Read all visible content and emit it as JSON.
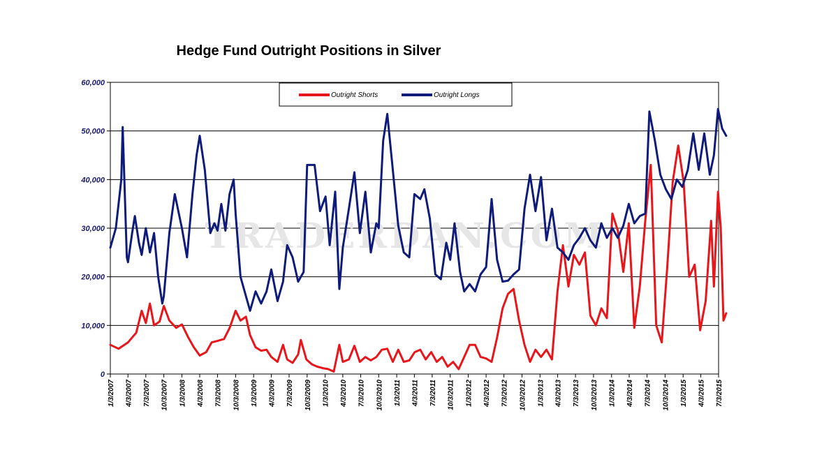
{
  "title": "Hedge Fund Outright Positions in Silver",
  "watermark": "TRADERDAN.COM",
  "chart_data": {
    "type": "line",
    "title": "Hedge Fund Outright Positions in Silver",
    "xlabel": "",
    "ylabel": "",
    "ylim": [
      0,
      60000
    ],
    "y_ticks": [
      "0",
      "10,000",
      "20,000",
      "30,000",
      "40,000",
      "50,000",
      "60,000"
    ],
    "x_ticks": [
      "1/3/2007",
      "4/3/2007",
      "7/3/2007",
      "10/3/2007",
      "1/3/2008",
      "4/3/2008",
      "7/3/2008",
      "10/3/2008",
      "1/3/2009",
      "4/3/2009",
      "7/3/2009",
      "10/3/2009",
      "1/3/2010",
      "4/3/2010",
      "7/3/2010",
      "10/3/2010",
      "1/3/2011",
      "4/3/2011",
      "7/3/2011",
      "10/3/2011",
      "1/3/2012",
      "4/3/2012",
      "7/3/2012",
      "10/3/2012",
      "1/3/2013",
      "4/3/2013",
      "7/3/2013",
      "10/3/2013",
      "1/3/2014",
      "4/3/2014",
      "7/3/2014",
      "10/3/2014",
      "1/3/2015",
      "4/3/2015",
      "7/3/2015"
    ],
    "x_domain": [
      "1/3/2007",
      "7/3/2015"
    ],
    "grid": "horizontal",
    "legend": "top-center",
    "series": [
      {
        "name": "Outright Shorts",
        "color": "#e8161b",
        "points": [
          [
            "1/3/2007",
            6000
          ],
          [
            "2/14/2007",
            5200
          ],
          [
            "4/3/2007",
            6500
          ],
          [
            "5/15/2007",
            8500
          ],
          [
            "6/12/2007",
            13000
          ],
          [
            "7/3/2007",
            10500
          ],
          [
            "7/24/2007",
            14500
          ],
          [
            "8/14/2007",
            10000
          ],
          [
            "9/11/2007",
            10800
          ],
          [
            "10/3/2007",
            14000
          ],
          [
            "10/31/2007",
            11000
          ],
          [
            "12/5/2007",
            9500
          ],
          [
            "1/3/2008",
            10200
          ],
          [
            "2/5/2008",
            7500
          ],
          [
            "3/4/2008",
            5500
          ],
          [
            "4/3/2008",
            3800
          ],
          [
            "5/6/2008",
            4500
          ],
          [
            "6/3/2008",
            6500
          ],
          [
            "7/3/2008",
            6800
          ],
          [
            "8/5/2008",
            7200
          ],
          [
            "9/3/2008",
            9500
          ],
          [
            "10/3/2008",
            13000
          ],
          [
            "10/28/2008",
            11000
          ],
          [
            "11/25/2008",
            11800
          ],
          [
            "12/16/2008",
            8000
          ],
          [
            "1/13/2009",
            5500
          ],
          [
            "2/10/2009",
            4800
          ],
          [
            "3/10/2009",
            5000
          ],
          [
            "4/3/2009",
            3500
          ],
          [
            "5/5/2009",
            2500
          ],
          [
            "6/2/2009",
            6000
          ],
          [
            "6/23/2009",
            3000
          ],
          [
            "7/21/2009",
            2300
          ],
          [
            "8/18/2009",
            4000
          ],
          [
            "9/1/2009",
            7000
          ],
          [
            "9/29/2009",
            3000
          ],
          [
            "10/27/2009",
            2000
          ],
          [
            "11/24/2009",
            1500
          ],
          [
            "12/22/2009",
            1200
          ],
          [
            "1/19/2010",
            1000
          ],
          [
            "2/16/2010",
            500
          ],
          [
            "3/16/2010",
            6000
          ],
          [
            "4/3/2010",
            2500
          ],
          [
            "5/4/2010",
            3000
          ],
          [
            "6/1/2010",
            5800
          ],
          [
            "6/29/2010",
            2500
          ],
          [
            "7/27/2010",
            3500
          ],
          [
            "8/24/2010",
            2800
          ],
          [
            "9/21/2010",
            3500
          ],
          [
            "10/19/2010",
            5000
          ],
          [
            "11/16/2010",
            5200
          ],
          [
            "12/14/2010",
            2500
          ],
          [
            "1/11/2011",
            5000
          ],
          [
            "2/8/2011",
            2500
          ],
          [
            "3/8/2011",
            2800
          ],
          [
            "4/5/2011",
            4500
          ],
          [
            "5/3/2011",
            5000
          ],
          [
            "5/31/2011",
            3000
          ],
          [
            "6/28/2011",
            4500
          ],
          [
            "7/26/2011",
            2500
          ],
          [
            "8/23/2011",
            3500
          ],
          [
            "9/20/2011",
            1500
          ],
          [
            "10/18/2011",
            2500
          ],
          [
            "11/15/2011",
            1000
          ],
          [
            "12/13/2011",
            3500
          ],
          [
            "1/10/2012",
            6000
          ],
          [
            "2/7/2012",
            6000
          ],
          [
            "3/6/2012",
            3500
          ],
          [
            "4/3/2012",
            3200
          ],
          [
            "5/1/2012",
            2500
          ],
          [
            "5/29/2012",
            7500
          ],
          [
            "6/26/2012",
            13500
          ],
          [
            "7/24/2012",
            16500
          ],
          [
            "8/21/2012",
            17500
          ],
          [
            "9/18/2012",
            11000
          ],
          [
            "10/16/2012",
            6000
          ],
          [
            "11/13/2012",
            2500
          ],
          [
            "12/11/2012",
            5000
          ],
          [
            "1/8/2013",
            3500
          ],
          [
            "2/5/2013",
            5000
          ],
          [
            "3/5/2013",
            3000
          ],
          [
            "4/2/2013",
            17000
          ],
          [
            "4/30/2013",
            26500
          ],
          [
            "5/28/2013",
            18000
          ],
          [
            "6/25/2013",
            24500
          ],
          [
            "7/23/2013",
            22500
          ],
          [
            "8/20/2013",
            25000
          ],
          [
            "9/17/2013",
            12000
          ],
          [
            "10/15/2013",
            10000
          ],
          [
            "11/12/2013",
            13500
          ],
          [
            "12/10/2013",
            11500
          ],
          [
            "1/7/2014",
            33000
          ],
          [
            "2/4/2014",
            29500
          ],
          [
            "3/4/2014",
            21000
          ],
          [
            "4/1/2014",
            31000
          ],
          [
            "4/29/2014",
            9500
          ],
          [
            "5/27/2014",
            18000
          ],
          [
            "6/24/2014",
            31500
          ],
          [
            "7/22/2014",
            43000
          ],
          [
            "8/19/2014",
            10000
          ],
          [
            "9/16/2014",
            6500
          ],
          [
            "10/14/2014",
            22000
          ],
          [
            "11/11/2014",
            39500
          ],
          [
            "12/9/2014",
            47000
          ],
          [
            "1/6/2015",
            39500
          ],
          [
            "2/3/2015",
            20000
          ],
          [
            "3/3/2015",
            22500
          ],
          [
            "3/31/2015",
            9000
          ],
          [
            "4/28/2015",
            15000
          ],
          [
            "5/26/2015",
            31500
          ],
          [
            "6/9/2015",
            18000
          ],
          [
            "6/30/2015",
            37500
          ],
          [
            "7/14/2015",
            30000
          ],
          [
            "7/28/2015",
            11000
          ],
          [
            "8/11/2015",
            12500
          ]
        ]
      },
      {
        "name": "Outright Longs",
        "color": "#0e1b7a",
        "points": [
          [
            "1/3/2007",
            26000
          ],
          [
            "1/31/2007",
            30000
          ],
          [
            "2/28/2007",
            40000
          ],
          [
            "3/7/2007",
            50800
          ],
          [
            "3/28/2007",
            24000
          ],
          [
            "4/3/2007",
            23000
          ],
          [
            "4/24/2007",
            29000
          ],
          [
            "5/8/2007",
            32500
          ],
          [
            "5/29/2007",
            27000
          ],
          [
            "6/12/2007",
            24500
          ],
          [
            "7/3/2007",
            30000
          ],
          [
            "7/24/2007",
            25000
          ],
          [
            "8/14/2007",
            29000
          ],
          [
            "9/4/2007",
            20000
          ],
          [
            "9/25/2007",
            14500
          ],
          [
            "10/3/2007",
            16000
          ],
          [
            "10/31/2007",
            29000
          ],
          [
            "11/28/2007",
            37000
          ],
          [
            "1/3/2008",
            30000
          ],
          [
            "1/29/2008",
            24000
          ],
          [
            "2/26/2008",
            37000
          ],
          [
            "3/18/2008",
            45000
          ],
          [
            "4/3/2008",
            49000
          ],
          [
            "4/29/2008",
            42000
          ],
          [
            "5/27/2008",
            29000
          ],
          [
            "6/17/2008",
            31000
          ],
          [
            "7/3/2008",
            29500
          ],
          [
            "7/22/2008",
            35000
          ],
          [
            "8/12/2008",
            29500
          ],
          [
            "9/2/2008",
            37000
          ],
          [
            "9/23/2008",
            40000
          ],
          [
            "10/3/2008",
            33000
          ],
          [
            "10/28/2008",
            20000
          ],
          [
            "11/25/2008",
            16000
          ],
          [
            "12/16/2008",
            13000
          ],
          [
            "1/13/2009",
            17000
          ],
          [
            "2/10/2009",
            14500
          ],
          [
            "3/10/2009",
            17000
          ],
          [
            "4/3/2009",
            21500
          ],
          [
            "5/5/2009",
            15000
          ],
          [
            "6/2/2009",
            19000
          ],
          [
            "6/23/2009",
            26500
          ],
          [
            "7/21/2009",
            24000
          ],
          [
            "8/18/2009",
            19000
          ],
          [
            "9/15/2009",
            21000
          ],
          [
            "10/3/2009",
            43000
          ],
          [
            "11/10/2009",
            43000
          ],
          [
            "12/8/2009",
            33500
          ],
          [
            "1/5/2010",
            36500
          ],
          [
            "1/26/2010",
            26500
          ],
          [
            "2/23/2010",
            37500
          ],
          [
            "3/16/2010",
            17500
          ],
          [
            "4/3/2010",
            26000
          ],
          [
            "5/4/2010",
            34000
          ],
          [
            "6/1/2010",
            41500
          ],
          [
            "6/29/2010",
            29000
          ],
          [
            "7/27/2010",
            37500
          ],
          [
            "8/24/2010",
            25000
          ],
          [
            "9/21/2010",
            31000
          ],
          [
            "10/3/2010",
            30000
          ],
          [
            "10/26/2010",
            48000
          ],
          [
            "11/16/2010",
            53500
          ],
          [
            "12/14/2010",
            42000
          ],
          [
            "1/11/2011",
            30500
          ],
          [
            "2/8/2011",
            25000
          ],
          [
            "3/8/2011",
            24000
          ],
          [
            "4/3/2011",
            37000
          ],
          [
            "5/3/2011",
            36000
          ],
          [
            "5/24/2011",
            38000
          ],
          [
            "6/21/2011",
            32000
          ],
          [
            "7/19/2011",
            20500
          ],
          [
            "8/16/2011",
            19500
          ],
          [
            "9/13/2011",
            27000
          ],
          [
            "10/3/2011",
            23500
          ],
          [
            "10/25/2011",
            31000
          ],
          [
            "11/22/2011",
            21000
          ],
          [
            "12/13/2011",
            17000
          ],
          [
            "1/10/2012",
            18500
          ],
          [
            "2/7/2012",
            17000
          ],
          [
            "3/6/2012",
            20500
          ],
          [
            "4/3/2012",
            22000
          ],
          [
            "5/1/2012",
            36000
          ],
          [
            "5/29/2012",
            23500
          ],
          [
            "6/26/2012",
            19000
          ],
          [
            "7/24/2012",
            19200
          ],
          [
            "8/21/2012",
            20500
          ],
          [
            "9/18/2012",
            21500
          ],
          [
            "10/16/2012",
            34000
          ],
          [
            "11/13/2012",
            41000
          ],
          [
            "12/11/2012",
            33500
          ],
          [
            "1/8/2013",
            40500
          ],
          [
            "2/5/2013",
            27500
          ],
          [
            "3/5/2013",
            34000
          ],
          [
            "4/2/2013",
            26000
          ],
          [
            "4/30/2013",
            25000
          ],
          [
            "5/28/2013",
            23500
          ],
          [
            "6/25/2013",
            26500
          ],
          [
            "7/23/2013",
            28000
          ],
          [
            "8/20/2013",
            30000
          ],
          [
            "9/17/2013",
            27500
          ],
          [
            "10/15/2013",
            26000
          ],
          [
            "11/12/2013",
            31000
          ],
          [
            "12/10/2013",
            28000
          ],
          [
            "1/7/2014",
            30000
          ],
          [
            "2/4/2014",
            28000
          ],
          [
            "3/4/2014",
            30500
          ],
          [
            "4/1/2014",
            35000
          ],
          [
            "4/29/2014",
            31000
          ],
          [
            "5/27/2014",
            32500
          ],
          [
            "6/24/2014",
            33000
          ],
          [
            "7/15/2014",
            54000
          ],
          [
            "8/12/2014",
            48000
          ],
          [
            "9/9/2014",
            41000
          ],
          [
            "10/7/2014",
            38000
          ],
          [
            "11/4/2014",
            36000
          ],
          [
            "12/2/2014",
            40000
          ],
          [
            "12/30/2014",
            38500
          ],
          [
            "1/27/2015",
            42000
          ],
          [
            "2/24/2015",
            49500
          ],
          [
            "3/24/2015",
            42000
          ],
          [
            "4/21/2015",
            49500
          ],
          [
            "5/19/2015",
            41000
          ],
          [
            "6/9/2015",
            45000
          ],
          [
            "6/30/2015",
            54500
          ],
          [
            "7/21/2015",
            50500
          ],
          [
            "8/11/2015",
            49000
          ]
        ]
      }
    ]
  }
}
